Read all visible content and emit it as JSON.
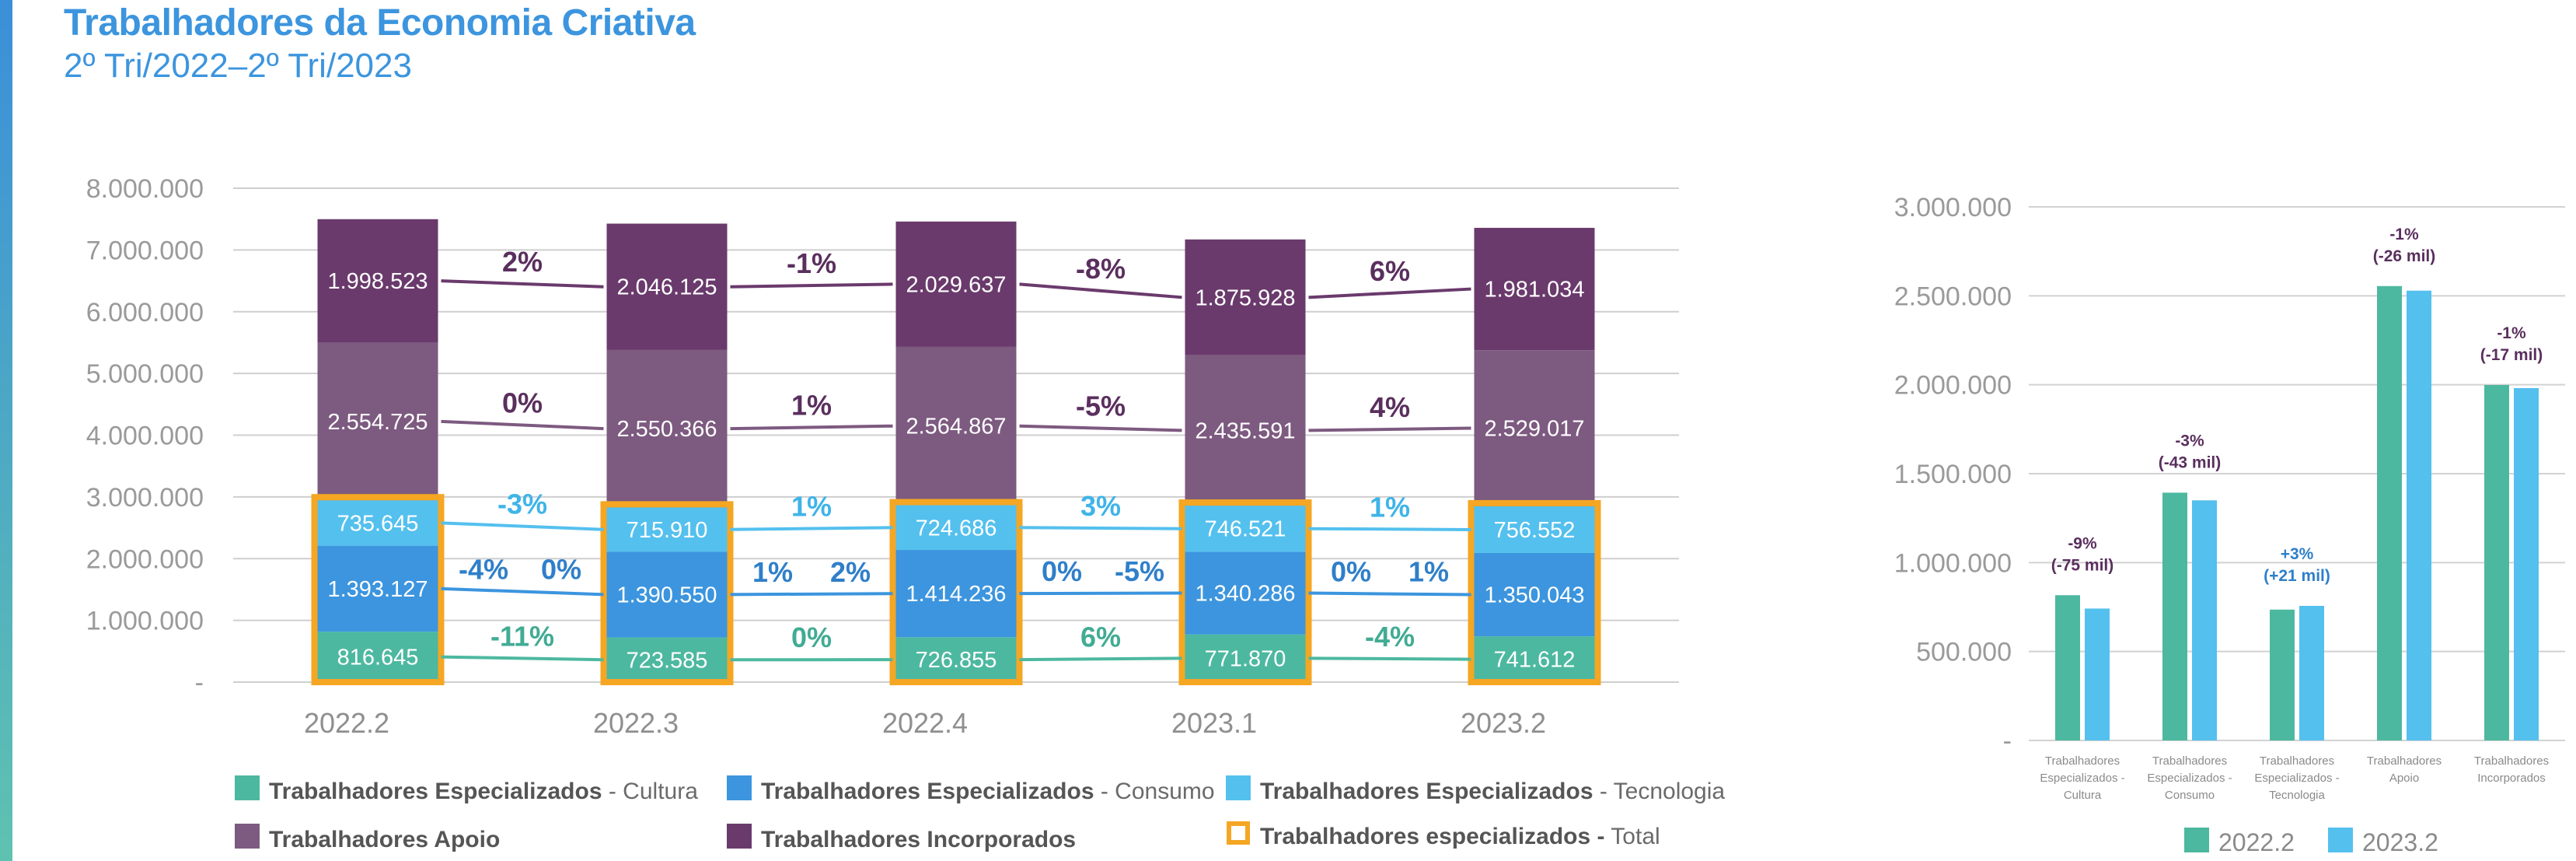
{
  "header": {
    "title": "Trabalhadores da Economia Criativa",
    "subtitle": "2º Tri/2022–2º Tri/2023"
  },
  "colors": {
    "cultura": "#4db8a0",
    "consumo": "#3c95de",
    "tecnologia": "#54c0ee",
    "apoio": "#7d5a80",
    "incorporados": "#6a3a6c",
    "total_box": "#f5a623",
    "text_purple": "#5a2f5e",
    "text_teal": "#42ab94",
    "text_blue": "#2f7fc9",
    "text_lightblue": "#3fb4e8"
  },
  "chart_data": [
    {
      "type": "bar",
      "subtype": "stacked",
      "categories": [
        "2022.2",
        "2022.3",
        "2022.4",
        "2023.1",
        "2023.2"
      ],
      "ylim": [
        0,
        8000000
      ],
      "yticks": [
        "-",
        "1.000.000",
        "2.000.000",
        "3.000.000",
        "4.000.000",
        "5.000.000",
        "6.000.000",
        "7.000.000",
        "8.000.000"
      ],
      "grid": true,
      "series": [
        {
          "key": "cultura",
          "values": [
            816645,
            723585,
            726855,
            771870,
            741612
          ],
          "labels": [
            "816.645",
            "723.585",
            "726.855",
            "771.870",
            "741.612"
          ],
          "changes": [
            "-11%",
            "0%",
            "6%",
            "-4%"
          ]
        },
        {
          "key": "consumo",
          "values": [
            1393127,
            1390550,
            1414236,
            1340286,
            1350043
          ],
          "labels": [
            "1.393.127",
            "1.390.550",
            "1.414.236",
            "1.340.286",
            "1.350.043"
          ],
          "changes": [
            "0%",
            "2%",
            "-5%",
            "1%"
          ]
        },
        {
          "key": "tecnologia",
          "values": [
            735645,
            715910,
            724686,
            746521,
            756552
          ],
          "labels": [
            "735.645",
            "715.910",
            "724.686",
            "746.521",
            "756.552"
          ],
          "changes": [
            "-3%",
            "1%",
            "3%",
            "1%"
          ]
        },
        {
          "key": "apoio",
          "values": [
            2554725,
            2550366,
            2564867,
            2435591,
            2529017
          ],
          "labels": [
            "2.554.725",
            "2.550.366",
            "2.564.867",
            "2.435.591",
            "2.529.017"
          ],
          "changes": [
            "0%",
            "1%",
            "-5%",
            "4%"
          ]
        },
        {
          "key": "incorporados",
          "values": [
            1998523,
            2046125,
            2029637,
            1875928,
            1981034
          ],
          "labels": [
            "1.998.523",
            "2.046.125",
            "2.029.637",
            "1.875.928",
            "1.981.034"
          ],
          "changes": [
            "2%",
            "-1%",
            "-8%",
            "6%"
          ]
        }
      ],
      "total_especializados_changes": [
        "-4%",
        "1%",
        "0%",
        "0%"
      ],
      "legend": [
        {
          "key": "cultura",
          "bold": "Trabalhadores Especializados",
          "rest": " - Cultura",
          "shape": "fill"
        },
        {
          "key": "consumo",
          "bold": "Trabalhadores Especializados",
          "rest": " - Consumo",
          "shape": "fill"
        },
        {
          "key": "tecnologia",
          "bold": "Trabalhadores Especializados",
          "rest": " - Tecnologia",
          "shape": "fill"
        },
        {
          "key": "apoio",
          "bold": "Trabalhadores Apoio",
          "rest": "",
          "shape": "fill"
        },
        {
          "key": "incorporados",
          "bold": "Trabalhadores Incorporados",
          "rest": "",
          "shape": "fill"
        },
        {
          "key": "total_box",
          "bold": "Trabalhadores especializados -",
          "rest": " Total",
          "shape": "outline"
        }
      ]
    },
    {
      "type": "bar",
      "subtype": "grouped",
      "categories": [
        "Trabalhadores Especializados - Cultura",
        "Trabalhadores Especializados - Consumo",
        "Trabalhadores Especializados - Tecnologia",
        "Trabalhadores Apoio",
        "Trabalhadores Incorporados"
      ],
      "category_lines": [
        [
          "Trabalhadores",
          "Especializados -",
          "Cultura"
        ],
        [
          "Trabalhadores",
          "Especializados -",
          "Consumo"
        ],
        [
          "Trabalhadores",
          "Especializados -",
          "Tecnologia"
        ],
        [
          "Trabalhadores",
          "Apoio"
        ],
        [
          "Trabalhadores",
          "Incorporados"
        ]
      ],
      "ylim": [
        0,
        3000000
      ],
      "yticks": [
        "-",
        "500.000",
        "1.000.000",
        "1.500.000",
        "2.000.000",
        "2.500.000",
        "3.000.000"
      ],
      "grid": true,
      "series": [
        {
          "name": "2022.2",
          "color_key": "cultura",
          "values": [
            816645,
            1393127,
            735645,
            2554725,
            1998523
          ]
        },
        {
          "name": "2023.2",
          "color_key": "tecnologia",
          "values": [
            741612,
            1350043,
            756552,
            2529017,
            1981034
          ]
        }
      ],
      "annotations": [
        {
          "pct": "-9%",
          "abs": "(-75 mil)",
          "color_key": "text_purple"
        },
        {
          "pct": "-3%",
          "abs": "(-43 mil)",
          "color_key": "text_purple"
        },
        {
          "pct": "+3%",
          "abs": "(+21 mil)",
          "color_key": "text_blue"
        },
        {
          "pct": "-1%",
          "abs": "(-26 mil)",
          "color_key": "text_purple"
        },
        {
          "pct": "-1%",
          "abs": "(-17 mil)",
          "color_key": "text_purple"
        }
      ],
      "legend_position": "bottom"
    }
  ]
}
